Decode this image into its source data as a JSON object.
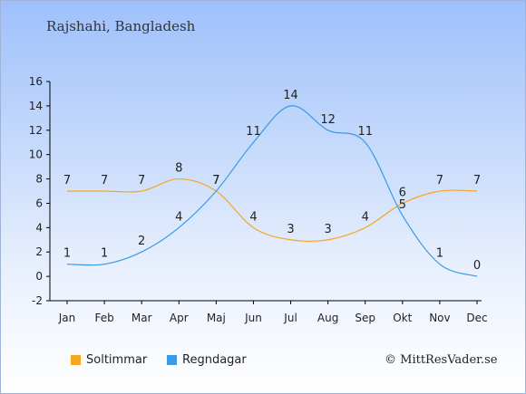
{
  "location": "Rajshahi, Bangladesh",
  "credit": "© MittResVader.se",
  "chart_data": {
    "type": "line",
    "categories": [
      "Jan",
      "Feb",
      "Mar",
      "Apr",
      "Maj",
      "Jun",
      "Jul",
      "Aug",
      "Sep",
      "Okt",
      "Nov",
      "Dec"
    ],
    "ylim": [
      -2,
      16
    ],
    "yticks": [
      -2,
      0,
      2,
      4,
      6,
      8,
      10,
      12,
      14,
      16
    ],
    "grid": false,
    "legend_position": "bottom-left",
    "series": [
      {
        "name": "Soltimmar",
        "color": "#f5a623",
        "values": [
          7,
          7,
          7,
          8,
          7,
          4,
          3,
          3,
          4,
          6,
          7,
          7
        ]
      },
      {
        "name": "Regndagar",
        "color": "#3c9ae6",
        "values": [
          1,
          1,
          2,
          4,
          7,
          11,
          14,
          12,
          11,
          5,
          1,
          0
        ]
      }
    ]
  }
}
